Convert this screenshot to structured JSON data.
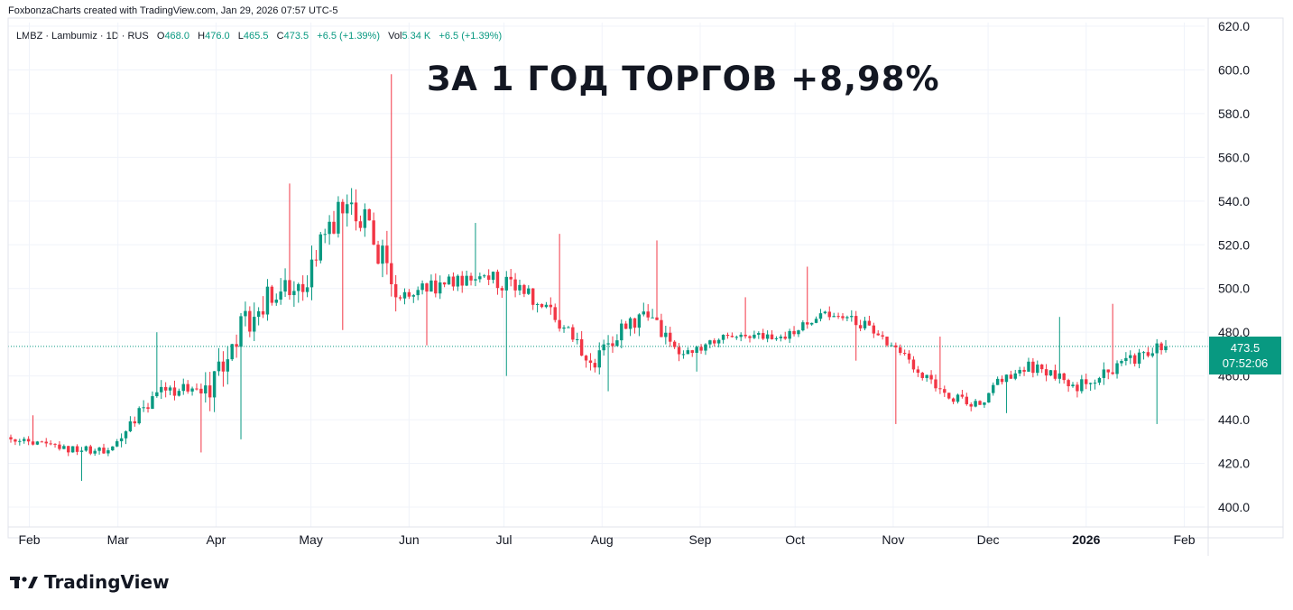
{
  "header": {
    "caption": "FoxbonzaCharts created with TradingView.com, Jan 29, 2026 07:57 UTC-5"
  },
  "legend": {
    "symbol": "LMBZ · Lambumiz · 1D · RUS",
    "o_label": "O",
    "o_value": "468.0",
    "h_label": "H",
    "h_value": "476.0",
    "l_label": "L",
    "l_value": "465.5",
    "c_label": "C",
    "c_value": "473.5",
    "change": "+6.5 (+1.39%)",
    "vol_label": "Vol",
    "vol_value": "5.34 K",
    "vol_change": "+6.5 (+1.39%)"
  },
  "headline": "ЗА 1 ГОД ТОРГОВ +8,98%",
  "brand": {
    "name": "TradingView"
  },
  "price_tag": {
    "price": "473.5",
    "countdown": "07:52:06"
  },
  "colors": {
    "up": "#089981",
    "down": "#f23645",
    "grid": "#f0f3fa",
    "text": "#131722"
  },
  "chart_data": {
    "type": "candlestick",
    "x_tick_labels": [
      "Feb",
      "Mar",
      "Apr",
      "May",
      "Jun",
      "Jul",
      "Aug",
      "Sep",
      "Oct",
      "Nov",
      "Dec",
      "2026",
      "Feb"
    ],
    "y_tick_labels": [
      "400.0",
      "420.0",
      "440.0",
      "460.0",
      "480.0",
      "500.0",
      "520.0",
      "540.0",
      "560.0",
      "580.0",
      "600.0",
      "620.0"
    ],
    "ylim": [
      400,
      620
    ],
    "last_price": 473.5,
    "grid": true,
    "dates_from": "2025-01-29",
    "dates_to": "2026-01-29",
    "monthly_ohlc": [
      {
        "month": "Feb 2025",
        "open": 432,
        "high": 442,
        "low": 412,
        "close": 426
      },
      {
        "month": "Mar 2025",
        "open": 426,
        "high": 480,
        "low": 425,
        "close": 452
      },
      {
        "month": "Apr 2025",
        "open": 452,
        "high": 548,
        "low": 431,
        "close": 502
      },
      {
        "month": "May 2025",
        "open": 502,
        "high": 598,
        "low": 481,
        "close": 496
      },
      {
        "month": "Jun 2025",
        "open": 496,
        "high": 530,
        "low": 474,
        "close": 504
      },
      {
        "month": "Jul 2025",
        "open": 504,
        "high": 525,
        "low": 460,
        "close": 466
      },
      {
        "month": "Aug 2025",
        "open": 466,
        "high": 522,
        "low": 453,
        "close": 470
      },
      {
        "month": "Sep 2025",
        "open": 470,
        "high": 496,
        "low": 462,
        "close": 478
      },
      {
        "month": "Oct 2025",
        "open": 478,
        "high": 510,
        "low": 467,
        "close": 478
      },
      {
        "month": "Nov 2025",
        "open": 478,
        "high": 478,
        "low": 438,
        "close": 446
      },
      {
        "month": "Dec 2025",
        "open": 446,
        "high": 487,
        "low": 443,
        "close": 456
      },
      {
        "month": "Jan 2026",
        "open": 456,
        "high": 493,
        "low": 438,
        "close": 473.5
      }
    ]
  }
}
